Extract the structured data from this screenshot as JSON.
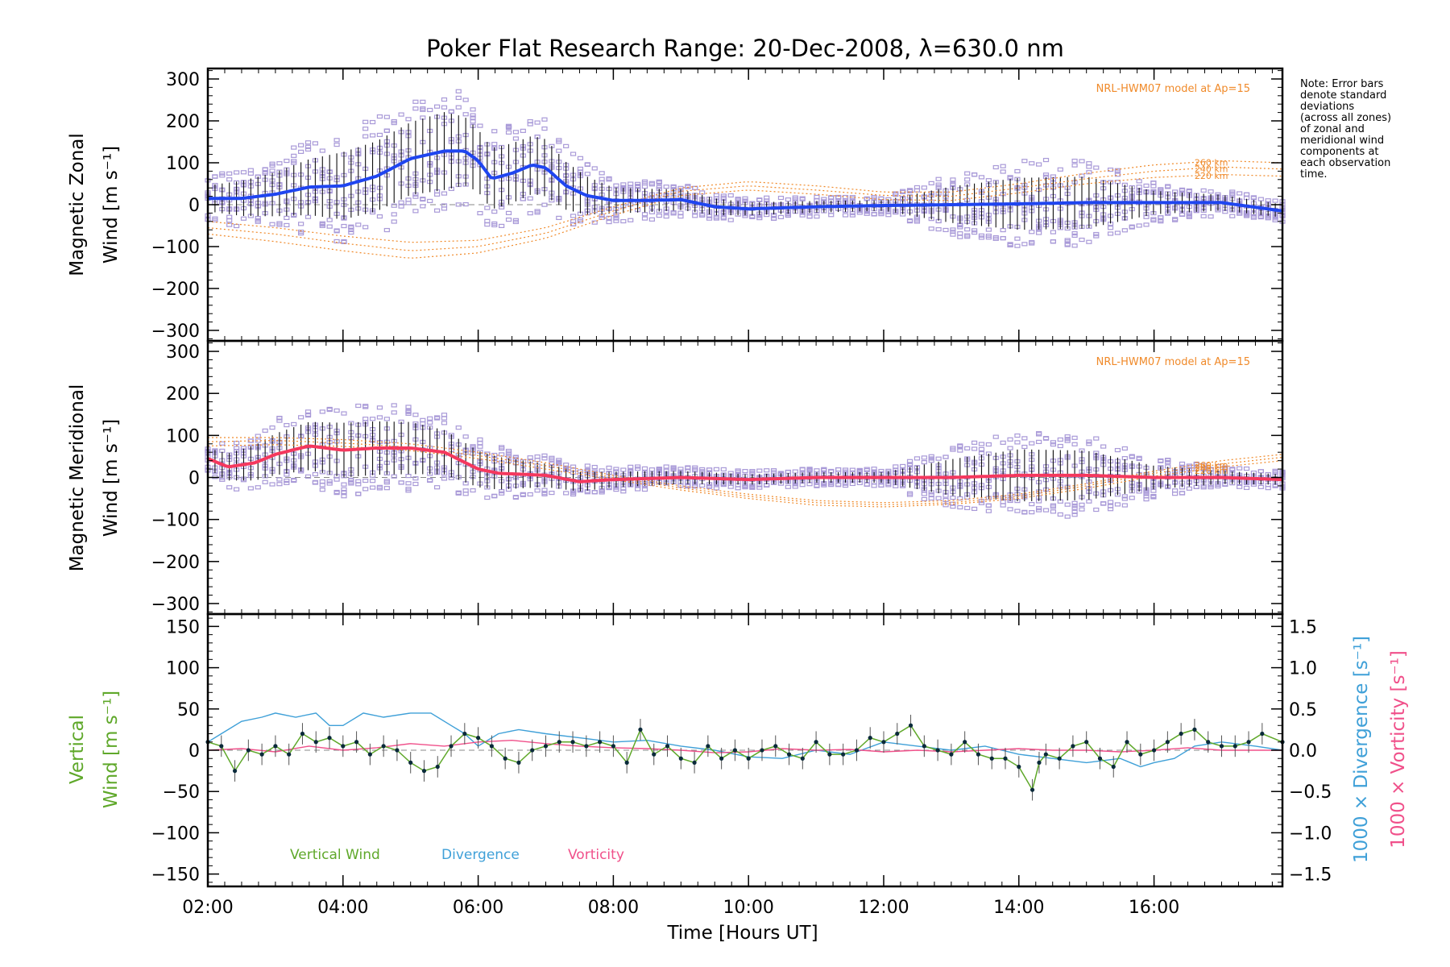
{
  "figure": {
    "title": "Poker Flat Research Range: 20-Dec-2008, λ=630.0 nm",
    "xlabel": "Time [Hours UT]",
    "x_tick_labels": [
      "02:00",
      "04:00",
      "06:00",
      "08:00",
      "10:00",
      "12:00",
      "14:00",
      "16:00"
    ],
    "note": [
      "Note: Error bars",
      "denote standard",
      "deviations",
      "(across all zones)",
      "of zonal and",
      "meridional wind",
      "components at",
      "each observation",
      "time."
    ]
  },
  "colors": {
    "zonal": "#1f45f0",
    "meridional": "#f5385e",
    "model": "#f08a2a",
    "scatter": "#a99ad8",
    "errorbar": "#101010",
    "vertical": "#5fa82a",
    "divergence": "#3fa0d8",
    "vorticity": "#f0508a",
    "zero_line": "#888888"
  },
  "chart_data": [
    {
      "type": "line",
      "panel": "zonal",
      "ylabel_line1": "Magnetic Zonal",
      "ylabel_line2": "Wind [m s⁻¹]",
      "ylim": [
        -325,
        325
      ],
      "xlim": [
        2.0,
        17.9
      ],
      "y_tick_labels": [
        "300",
        "200",
        "100",
        "0",
        "−100",
        "−200",
        "−300"
      ],
      "y_tick_values": [
        300,
        200,
        100,
        0,
        -100,
        -200,
        -300
      ],
      "model_label": "NRL-HWM07 model at Ap=15",
      "series": [
        {
          "role": "mean",
          "x": [
            2.0,
            2.5,
            3.0,
            3.5,
            4.0,
            4.5,
            5.0,
            5.5,
            5.8,
            6.0,
            6.2,
            6.5,
            6.8,
            7.0,
            7.3,
            7.6,
            8.0,
            8.5,
            9.0,
            9.5,
            10.0,
            11.0,
            12.0,
            13.0,
            14.0,
            15.0,
            16.0,
            17.0,
            17.9
          ],
          "values": [
            15,
            15,
            25,
            42,
            45,
            68,
            110,
            128,
            128,
            105,
            62,
            75,
            95,
            88,
            45,
            22,
            10,
            10,
            12,
            -5,
            -10,
            -5,
            -2,
            0,
            2,
            5,
            5,
            5,
            -15
          ]
        },
        {
          "role": "spread",
          "x": [
            2.0,
            3.0,
            4.0,
            5.0,
            5.5,
            6.0,
            7.0,
            8.0,
            9.0,
            10.0,
            12.0,
            13.0,
            14.0,
            15.0,
            16.0,
            17.0,
            17.9
          ],
          "values": [
            50,
            85,
            130,
            140,
            150,
            120,
            110,
            50,
            40,
            25,
            20,
            70,
            100,
            100,
            45,
            30,
            25
          ]
        },
        {
          "name": "260 km",
          "x": [
            2.0,
            3.0,
            4.0,
            5.0,
            6.0,
            7.0,
            8.0,
            9.0,
            10.0,
            11.0,
            12.0,
            13.0,
            14.0,
            15.0,
            16.0,
            17.0,
            17.9
          ],
          "values": [
            -40,
            -55,
            -75,
            -90,
            -85,
            -55,
            -5,
            40,
            55,
            45,
            30,
            30,
            50,
            75,
            95,
            105,
            100
          ]
        },
        {
          "name": "240 km",
          "x": [
            2.0,
            3.0,
            4.0,
            5.0,
            6.0,
            7.0,
            8.0,
            9.0,
            10.0,
            11.0,
            12.0,
            13.0,
            14.0,
            15.0,
            16.0,
            17.0,
            17.9
          ],
          "values": [
            -55,
            -70,
            -92,
            -110,
            -100,
            -68,
            -15,
            32,
            45,
            35,
            22,
            20,
            40,
            62,
            80,
            90,
            85
          ]
        },
        {
          "name": "220 km",
          "x": [
            2.0,
            3.0,
            4.0,
            5.0,
            6.0,
            7.0,
            8.0,
            9.0,
            10.0,
            11.0,
            12.0,
            13.0,
            14.0,
            15.0,
            16.0,
            17.0,
            17.9
          ],
          "values": [
            -70,
            -88,
            -110,
            -128,
            -115,
            -80,
            -25,
            22,
            35,
            25,
            12,
            10,
            28,
            50,
            65,
            72,
            68
          ]
        }
      ]
    },
    {
      "type": "line",
      "panel": "meridional",
      "ylabel_line1": "Magnetic Meridional",
      "ylabel_line2": "Wind [m s⁻¹]",
      "ylim": [
        -325,
        325
      ],
      "xlim": [
        2.0,
        17.9
      ],
      "y_tick_labels": [
        "300",
        "200",
        "100",
        "0",
        "−100",
        "−200",
        "−300"
      ],
      "y_tick_values": [
        300,
        200,
        100,
        0,
        -100,
        -200,
        -300
      ],
      "model_label": "NRL-HWM07 model at Ap=15",
      "series": [
        {
          "role": "mean",
          "x": [
            2.0,
            2.3,
            2.7,
            3.0,
            3.5,
            4.0,
            4.5,
            5.0,
            5.5,
            6.0,
            6.3,
            7.0,
            7.5,
            8.0,
            9.0,
            10.0,
            11.0,
            12.0,
            13.0,
            14.0,
            15.0,
            16.0,
            17.0,
            17.9
          ],
          "values": [
            45,
            25,
            35,
            55,
            75,
            65,
            70,
            70,
            60,
            20,
            10,
            5,
            -10,
            -5,
            0,
            -5,
            0,
            0,
            0,
            5,
            5,
            0,
            0,
            -5
          ]
        },
        {
          "role": "spread",
          "x": [
            2.0,
            3.0,
            4.0,
            5.0,
            6.0,
            7.0,
            8.0,
            9.0,
            10.0,
            12.0,
            13.0,
            14.0,
            15.0,
            16.0,
            17.0,
            17.9
          ],
          "values": [
            40,
            80,
            105,
            100,
            70,
            45,
            30,
            25,
            20,
            20,
            70,
            100,
            95,
            45,
            25,
            20
          ]
        },
        {
          "name": "260 km",
          "x": [
            2.0,
            3.0,
            4.0,
            5.0,
            6.0,
            7.0,
            8.0,
            9.0,
            10.0,
            11.0,
            12.0,
            13.0,
            14.0,
            15.0,
            16.0,
            17.0,
            17.9
          ],
          "values": [
            95,
            95,
            90,
            80,
            60,
            35,
            5,
            -20,
            -40,
            -55,
            -60,
            -55,
            -40,
            -15,
            15,
            40,
            55
          ]
        },
        {
          "name": "240 km",
          "x": [
            2.0,
            3.0,
            4.0,
            5.0,
            6.0,
            7.0,
            8.0,
            9.0,
            10.0,
            11.0,
            12.0,
            13.0,
            14.0,
            15.0,
            16.0,
            17.0,
            17.9
          ],
          "values": [
            85,
            88,
            82,
            72,
            52,
            28,
            0,
            -25,
            -45,
            -60,
            -65,
            -60,
            -45,
            -20,
            10,
            32,
            48
          ]
        },
        {
          "name": "220 km",
          "x": [
            2.0,
            3.0,
            4.0,
            5.0,
            6.0,
            7.0,
            8.0,
            9.0,
            10.0,
            11.0,
            12.0,
            13.0,
            14.0,
            15.0,
            16.0,
            17.0,
            17.9
          ],
          "values": [
            75,
            78,
            74,
            64,
            45,
            20,
            -5,
            -30,
            -50,
            -66,
            -70,
            -64,
            -50,
            -26,
            3,
            25,
            40
          ]
        }
      ]
    },
    {
      "type": "line",
      "panel": "vertical",
      "ylabel_line1": "Vertical",
      "ylabel_line2": "Wind [m s⁻¹]",
      "ylim": [
        -165,
        165
      ],
      "xlim": [
        2.0,
        17.9
      ],
      "y_tick_labels": [
        "150",
        "100",
        "50",
        "0",
        "−50",
        "−100",
        "−150"
      ],
      "y_tick_values": [
        150,
        100,
        50,
        0,
        -50,
        -100,
        -150
      ],
      "y2_label_divergence": "1000 × Divergence [s⁻¹]",
      "y2_label_vorticity": "1000 × Vorticity [s⁻¹]",
      "y2lim": [
        -1.65,
        1.65
      ],
      "y2_tick_labels": [
        "1.5",
        "1.0",
        "0.5",
        "0.0",
        "−0.5",
        "−1.0",
        "−1.5"
      ],
      "y2_tick_values": [
        1.5,
        1.0,
        0.5,
        0.0,
        -0.5,
        -1.0,
        -1.5
      ],
      "legend": [
        "Vertical Wind",
        "Divergence",
        "Vorticity"
      ],
      "series": [
        {
          "name": "Vertical Wind",
          "x": [
            2.0,
            2.2,
            2.4,
            2.6,
            2.8,
            3.0,
            3.2,
            3.4,
            3.6,
            3.8,
            4.0,
            4.2,
            4.4,
            4.6,
            4.8,
            5.0,
            5.2,
            5.4,
            5.6,
            5.8,
            6.0,
            6.2,
            6.4,
            6.6,
            6.8,
            7.0,
            7.2,
            7.4,
            7.6,
            7.8,
            8.0,
            8.2,
            8.4,
            8.6,
            8.8,
            9.0,
            9.2,
            9.4,
            9.6,
            9.8,
            10.0,
            10.2,
            10.4,
            10.6,
            10.8,
            11.0,
            11.2,
            11.4,
            11.6,
            11.8,
            12.0,
            12.2,
            12.4,
            12.6,
            12.8,
            13.0,
            13.2,
            13.4,
            13.6,
            13.8,
            14.0,
            14.2,
            14.3,
            14.4,
            14.6,
            14.8,
            15.0,
            15.2,
            15.4,
            15.6,
            15.8,
            16.0,
            16.2,
            16.4,
            16.6,
            16.8,
            17.0,
            17.2,
            17.4,
            17.6,
            17.9
          ],
          "values": [
            10,
            5,
            -25,
            0,
            -5,
            5,
            -5,
            20,
            10,
            15,
            5,
            10,
            -5,
            5,
            0,
            -15,
            -25,
            -20,
            5,
            20,
            15,
            5,
            -10,
            -15,
            0,
            5,
            10,
            10,
            5,
            10,
            5,
            -15,
            25,
            -5,
            5,
            -10,
            -15,
            5,
            -10,
            0,
            -10,
            0,
            5,
            -5,
            -10,
            10,
            -5,
            -5,
            0,
            15,
            10,
            20,
            30,
            5,
            0,
            -5,
            10,
            -5,
            -10,
            -10,
            -20,
            -48,
            -15,
            -5,
            -10,
            5,
            10,
            -10,
            -20,
            10,
            -5,
            0,
            10,
            20,
            25,
            10,
            5,
            5,
            10,
            20,
            10
          ]
        },
        {
          "name": "Divergence",
          "x": [
            2.0,
            2.2,
            2.5,
            2.8,
            3.0,
            3.3,
            3.6,
            3.8,
            4.0,
            4.3,
            4.6,
            5.0,
            5.3,
            5.6,
            5.8,
            6.0,
            6.3,
            6.6,
            7.0,
            7.5,
            8.0,
            8.5,
            9.0,
            9.5,
            10.0,
            10.5,
            11.0,
            11.5,
            12.0,
            12.5,
            13.0,
            13.5,
            14.0,
            14.5,
            15.0,
            15.5,
            15.8,
            16.0,
            16.3,
            16.6,
            17.0,
            17.5,
            17.9
          ],
          "values": [
            0.1,
            0.2,
            0.35,
            0.4,
            0.45,
            0.4,
            0.45,
            0.3,
            0.3,
            0.45,
            0.4,
            0.45,
            0.45,
            0.3,
            0.2,
            0.05,
            0.2,
            0.25,
            0.2,
            0.15,
            0.1,
            0.12,
            0.05,
            0.0,
            -0.08,
            -0.1,
            0.0,
            -0.05,
            0.1,
            0.05,
            0.0,
            0.05,
            -0.05,
            -0.1,
            -0.15,
            -0.1,
            -0.2,
            -0.15,
            -0.1,
            0.05,
            0.1,
            0.05,
            0.0
          ]
        },
        {
          "name": "Vorticity",
          "x": [
            2.0,
            2.5,
            3.0,
            3.5,
            4.0,
            4.5,
            5.0,
            5.5,
            6.0,
            6.5,
            7.0,
            7.5,
            8.0,
            8.5,
            9.0,
            9.5,
            10.0,
            10.5,
            11.0,
            11.5,
            12.0,
            12.5,
            13.0,
            13.5,
            14.0,
            14.5,
            15.0,
            15.5,
            16.0,
            16.5,
            17.0,
            17.9
          ],
          "values": [
            0.0,
            0.02,
            -0.02,
            0.05,
            0.0,
            0.03,
            0.08,
            0.05,
            0.1,
            0.12,
            0.08,
            0.05,
            0.03,
            0.02,
            0.0,
            -0.03,
            -0.02,
            0.02,
            0.0,
            0.01,
            -0.02,
            0.0,
            -0.02,
            0.0,
            0.02,
            0.0,
            0.0,
            -0.02,
            0.0,
            0.03,
            0.0,
            0.0
          ]
        }
      ]
    }
  ]
}
